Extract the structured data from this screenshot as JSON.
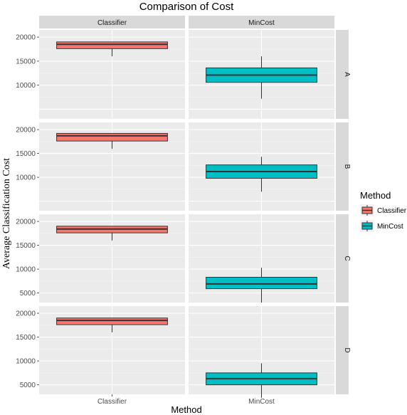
{
  "chart_data": {
    "type": "boxplot",
    "title": "Comparison of Cost",
    "xlabel": "Method",
    "ylabel": "Average Classification Cost",
    "categories": [
      "Classifier",
      "MinCost"
    ],
    "facet_columns": [
      "Classifier",
      "MinCost"
    ],
    "facet_rows": [
      "A",
      "B",
      "C",
      "D"
    ],
    "ylim": [
      3000,
      21500
    ],
    "yticks": [
      5000,
      10000,
      15000,
      20000
    ],
    "colors": {
      "Classifier": "#F8766D",
      "MinCost": "#00BFC4"
    },
    "legend": {
      "title": "Method",
      "entries": [
        "Classifier",
        "MinCost"
      ],
      "position": "right"
    },
    "panels": [
      {
        "row": "A",
        "yticks": [
          10000,
          15000,
          20000
        ],
        "boxes": [
          {
            "facet": "Classifier",
            "x": "Classifier",
            "min": 16000,
            "q1": 17600,
            "median": 18500,
            "q3": 19000,
            "max": 19000
          },
          {
            "facet": "MinCost",
            "x": "MinCost",
            "min": 7200,
            "q1": 10600,
            "median": 12100,
            "q3": 13600,
            "max": 16000
          }
        ]
      },
      {
        "row": "B",
        "yticks": [
          10000,
          15000,
          20000
        ],
        "boxes": [
          {
            "facet": "Classifier",
            "x": "Classifier",
            "min": 16000,
            "q1": 17600,
            "median": 18700,
            "q3": 19200,
            "max": 19200
          },
          {
            "facet": "MinCost",
            "x": "MinCost",
            "min": 7000,
            "q1": 9800,
            "median": 11200,
            "q3": 12600,
            "max": 14300
          }
        ]
      },
      {
        "row": "C",
        "yticks": [
          5000,
          10000,
          15000,
          20000
        ],
        "boxes": [
          {
            "facet": "Classifier",
            "x": "Classifier",
            "min": 16000,
            "q1": 17600,
            "median": 18400,
            "q3": 19000,
            "max": 19000
          },
          {
            "facet": "MinCost",
            "x": "MinCost",
            "min": 3000,
            "q1": 5900,
            "median": 6900,
            "q3": 8300,
            "max": 10300
          }
        ]
      },
      {
        "row": "D",
        "yticks": [
          5000,
          10000,
          15000,
          20000
        ],
        "boxes": [
          {
            "facet": "Classifier",
            "x": "Classifier",
            "min": 16000,
            "q1": 17600,
            "median": 18500,
            "q3": 19000,
            "max": 19000
          },
          {
            "facet": "MinCost",
            "x": "MinCost",
            "min": 2300,
            "q1": 5000,
            "median": 6300,
            "q3": 7500,
            "max": 9500
          }
        ]
      }
    ]
  }
}
